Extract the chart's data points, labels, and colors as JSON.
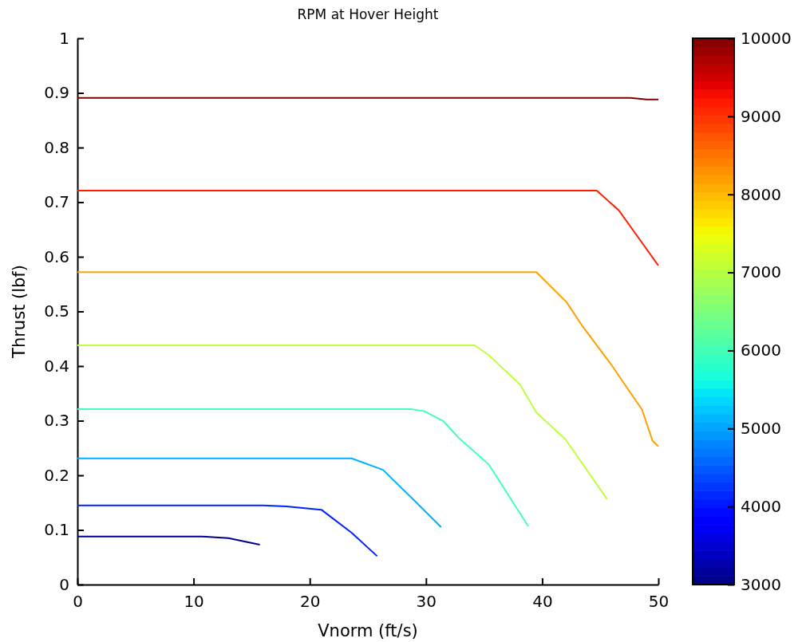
{
  "chart_data": {
    "type": "line",
    "title": "RPM at Hover Height",
    "xlabel": "Vnorm (ft/s)",
    "ylabel": "Thrust (lbf)",
    "xlim": [
      0,
      50
    ],
    "xticks": [
      0,
      10,
      20,
      30,
      40,
      50
    ],
    "ylim": [
      0,
      1
    ],
    "yticks": [
      0,
      0.1,
      0.2,
      0.3,
      0.4,
      0.5,
      0.6,
      0.7,
      0.8,
      0.9,
      1
    ],
    "clim": [
      3000,
      10000
    ],
    "cticks": [
      3000,
      4000,
      5000,
      6000,
      7000,
      8000,
      9000,
      10000
    ],
    "line_style": "solid",
    "series": [
      {
        "color": "#00008f",
        "x": [
          0,
          10.7,
          13,
          15.7
        ],
        "values": [
          0.088,
          0.088,
          0.085,
          0.073
        ]
      },
      {
        "color": "#0022ff",
        "x": [
          0,
          16,
          18,
          21,
          23.6,
          25.8
        ],
        "values": [
          0.145,
          0.145,
          0.143,
          0.137,
          0.095,
          0.052
        ]
      },
      {
        "color": "#00b0ff",
        "x": [
          0,
          23.6,
          26.3,
          28.8,
          31.3
        ],
        "values": [
          0.231,
          0.231,
          0.21,
          0.158,
          0.105
        ]
      },
      {
        "color": "#40ffbf",
        "x": [
          0,
          28.8,
          29.9,
          31.5,
          32.8,
          35.4,
          38.8
        ],
        "values": [
          0.321,
          0.321,
          0.317,
          0.299,
          0.269,
          0.22,
          0.107
        ]
      },
      {
        "color": "#c0ff40",
        "x": [
          0,
          34.2,
          35.4,
          38.1,
          39.5,
          42,
          45.6
        ],
        "values": [
          0.438,
          0.438,
          0.42,
          0.366,
          0.315,
          0.266,
          0.156
        ]
      },
      {
        "color": "#ffa000",
        "x": [
          0,
          39.5,
          42.1,
          43.5,
          45.9,
          48.6,
          49.5,
          50
        ],
        "values": [
          0.572,
          0.572,
          0.517,
          0.472,
          0.404,
          0.32,
          0.263,
          0.253
        ]
      },
      {
        "color": "#ff1a00",
        "x": [
          0,
          44.7,
          46.6,
          50
        ],
        "values": [
          0.721,
          0.721,
          0.685,
          0.584
        ]
      },
      {
        "color": "#800000",
        "x": [
          0,
          47.6,
          49,
          50
        ],
        "values": [
          0.891,
          0.891,
          0.888,
          0.888
        ]
      }
    ]
  }
}
